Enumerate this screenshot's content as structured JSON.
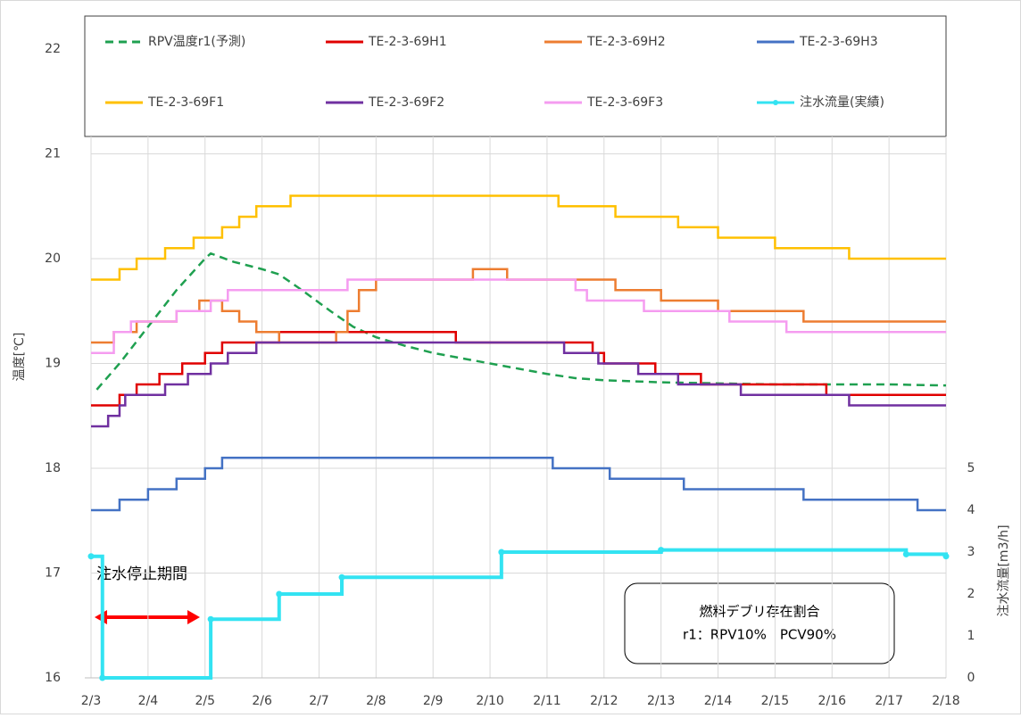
{
  "chart_data": {
    "type": "line",
    "drawstyle": "steps-post",
    "grid": true,
    "ylabel": "温度[℃]",
    "y2label": "注水流量[m3/h]",
    "xlim": [
      3,
      18
    ],
    "xticks": [
      {
        "value": 3,
        "label": "2/3"
      },
      {
        "value": 4,
        "label": "2/4"
      },
      {
        "value": 5,
        "label": "2/5"
      },
      {
        "value": 6,
        "label": "2/6"
      },
      {
        "value": 7,
        "label": "2/7"
      },
      {
        "value": 8,
        "label": "2/8"
      },
      {
        "value": 9,
        "label": "2/9"
      },
      {
        "value": 10,
        "label": "2/10"
      },
      {
        "value": 11,
        "label": "2/11"
      },
      {
        "value": 12,
        "label": "2/12"
      },
      {
        "value": 13,
        "label": "2/13"
      },
      {
        "value": 14,
        "label": "2/14"
      },
      {
        "value": 15,
        "label": "2/15"
      },
      {
        "value": 16,
        "label": "2/16"
      },
      {
        "value": 17,
        "label": "2/17"
      },
      {
        "value": 18,
        "label": "2/18"
      }
    ],
    "ylim": [
      16,
      22
    ],
    "yticks": [
      16,
      17,
      18,
      19,
      20,
      21,
      22
    ],
    "y2lim": [
      0,
      15
    ],
    "y2ticks": [
      0,
      1,
      2,
      3,
      4,
      5
    ],
    "annotations": [
      "注水停止期間"
    ],
    "note_box": [
      "燃料デブリ存在割合",
      "r1：RPV10%　PCV90%"
    ],
    "series": [
      {
        "name": "RPV温度r1(予測)",
        "color": "#1fa050",
        "dash": true,
        "smooth": true,
        "x": [
          3.1,
          3.5,
          4,
          4.5,
          5,
          5.1,
          5.5,
          6,
          6.3,
          6.7,
          7.2,
          7.6,
          8,
          8.5,
          9,
          9.5,
          10,
          10.5,
          11,
          11.5,
          12,
          13,
          14,
          15,
          16,
          17,
          18
        ],
        "values": [
          18.75,
          19.0,
          19.35,
          19.7,
          20.0,
          20.05,
          19.97,
          19.9,
          19.85,
          19.7,
          19.5,
          19.35,
          19.25,
          19.17,
          19.1,
          19.05,
          19.0,
          18.95,
          18.9,
          18.86,
          18.84,
          18.82,
          18.81,
          18.8,
          18.8,
          18.8,
          18.79
        ]
      },
      {
        "name": "TE-2-3-69H1",
        "color": "#e00000",
        "x": [
          3,
          3.5,
          3.8,
          4.2,
          4.6,
          5,
          5.3,
          6.3,
          9.4,
          11.8,
          12,
          12.9,
          13.7,
          15.9,
          18
        ],
        "values": [
          18.6,
          18.7,
          18.8,
          18.9,
          19.0,
          19.1,
          19.2,
          19.3,
          19.2,
          19.1,
          19.0,
          18.9,
          18.8,
          18.7,
          18.7
        ]
      },
      {
        "name": "TE-2-3-69H2",
        "color": "#ed7d31",
        "x": [
          3,
          3.4,
          3.8,
          4.5,
          4.9,
          5.3,
          5.6,
          5.9,
          6.3,
          7.3,
          7.5,
          7.7,
          8,
          9.7,
          10.3,
          12.2,
          13,
          14,
          15.5,
          18
        ],
        "values": [
          19.2,
          19.3,
          19.4,
          19.5,
          19.6,
          19.5,
          19.4,
          19.3,
          19.2,
          19.3,
          19.5,
          19.7,
          19.8,
          19.9,
          19.8,
          19.7,
          19.6,
          19.5,
          19.4,
          19.4
        ]
      },
      {
        "name": "TE-2-3-69H3",
        "color": "#4472c4",
        "x": [
          3,
          3.5,
          4,
          4.5,
          5,
          5.3,
          11.1,
          12.1,
          13.4,
          15.5,
          17.5,
          18
        ],
        "values": [
          17.6,
          17.7,
          17.8,
          17.9,
          18.0,
          18.1,
          18.0,
          17.9,
          17.8,
          17.7,
          17.6,
          17.6
        ]
      },
      {
        "name": "TE-2-3-69F1",
        "color": "#ffc000",
        "x": [
          3,
          3.5,
          3.8,
          4.3,
          4.8,
          5.3,
          5.6,
          5.9,
          6.5,
          11.2,
          12.2,
          13.3,
          14,
          15,
          16.3,
          18
        ],
        "values": [
          19.8,
          19.9,
          20.0,
          20.1,
          20.2,
          20.3,
          20.4,
          20.5,
          20.6,
          20.5,
          20.4,
          20.3,
          20.2,
          20.1,
          20.0,
          20.0
        ]
      },
      {
        "name": "TE-2-3-69F2",
        "color": "#7030a0",
        "x": [
          3,
          3.3,
          3.5,
          3.6,
          4.3,
          4.7,
          5.1,
          5.4,
          5.9,
          11.3,
          11.9,
          12.6,
          13.3,
          14.4,
          16.3,
          18
        ],
        "values": [
          18.4,
          18.5,
          18.6,
          18.7,
          18.8,
          18.9,
          19.0,
          19.1,
          19.2,
          19.1,
          19.0,
          18.9,
          18.8,
          18.7,
          18.6,
          18.6
        ]
      },
      {
        "name": "TE-2-3-69F3",
        "color": "#f59cf0",
        "x": [
          3,
          3.4,
          3.7,
          4.5,
          5.1,
          5.4,
          7.5,
          11.5,
          11.7,
          12.7,
          14.2,
          15.2,
          18
        ],
        "values": [
          19.1,
          19.3,
          19.4,
          19.5,
          19.6,
          19.7,
          19.8,
          19.7,
          19.6,
          19.5,
          19.4,
          19.3,
          19.3
        ]
      },
      {
        "name": "注水流量(実績)",
        "color": "#33e3f2",
        "axis": "y2",
        "marker": true,
        "x": [
          3,
          3.2,
          5.1,
          6.3,
          7.4,
          10.2,
          13,
          17.3,
          18
        ],
        "values": [
          2.9,
          0,
          1.4,
          2.0,
          2.4,
          3.0,
          3.05,
          2.95,
          2.9
        ]
      }
    ]
  }
}
